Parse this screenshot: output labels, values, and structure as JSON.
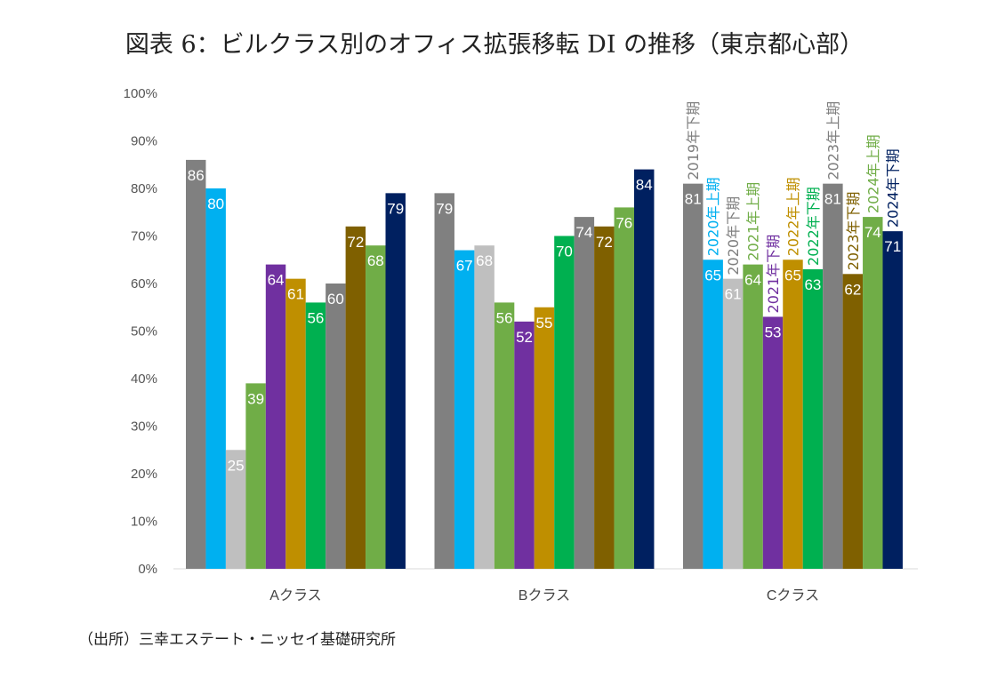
{
  "title": "図表 6：ビルクラス別のオフィス拡張移転 DI の推移（東京都心部）",
  "source": "（出所）三幸エステート・ニッセイ基礎研究所",
  "chart_data": {
    "type": "bar",
    "title": "図表 6：ビルクラス別のオフィス拡張移転 DI の推移（東京都心部）",
    "categories": [
      "Aクラス",
      "Bクラス",
      "Cクラス"
    ],
    "ylim": [
      0,
      100
    ],
    "yticks": [
      "0%",
      "10%",
      "20%",
      "30%",
      "40%",
      "50%",
      "60%",
      "70%",
      "80%",
      "90%",
      "100%"
    ],
    "grid": false,
    "legend": "series labels printed vertically above the Cクラス bars",
    "series": [
      {
        "name": "2019年下期",
        "color": "#808080",
        "label_color": "#7f7f7f",
        "values": [
          86,
          79,
          81
        ]
      },
      {
        "name": "2020年上期",
        "color": "#00B0F0",
        "label_color": "#00B0F0",
        "values": [
          80,
          67,
          65
        ]
      },
      {
        "name": "2020年下期",
        "color": "#BFBFBF",
        "label_color": "#808080",
        "values": [
          25,
          68,
          61
        ]
      },
      {
        "name": "2021年上期",
        "color": "#70AD47",
        "label_color": "#70AD47",
        "values": [
          39,
          56,
          64
        ]
      },
      {
        "name": "2021年下期",
        "color": "#7030A0",
        "label_color": "#7030A0",
        "values": [
          64,
          52,
          53
        ]
      },
      {
        "name": "2022年上期",
        "color": "#BF8F00",
        "label_color": "#BF8F00",
        "values": [
          61,
          55,
          65
        ]
      },
      {
        "name": "2022年下期",
        "color": "#00B050",
        "label_color": "#00B050",
        "values": [
          56,
          70,
          63
        ]
      },
      {
        "name": "2023年上期",
        "color": "#7F7F7F",
        "label_color": "#7f7f7f",
        "values": [
          60,
          74,
          81
        ]
      },
      {
        "name": "2023年下期",
        "color": "#7F6000",
        "label_color": "#7F6000",
        "values": [
          72,
          72,
          62
        ]
      },
      {
        "name": "2024年上期",
        "color": "#70AD47",
        "label_color": "#70AD47",
        "values": [
          68,
          76,
          74
        ]
      },
      {
        "name": "2024年下期",
        "color": "#002060",
        "label_color": "#002060",
        "values": [
          79,
          84,
          71
        ]
      }
    ]
  }
}
